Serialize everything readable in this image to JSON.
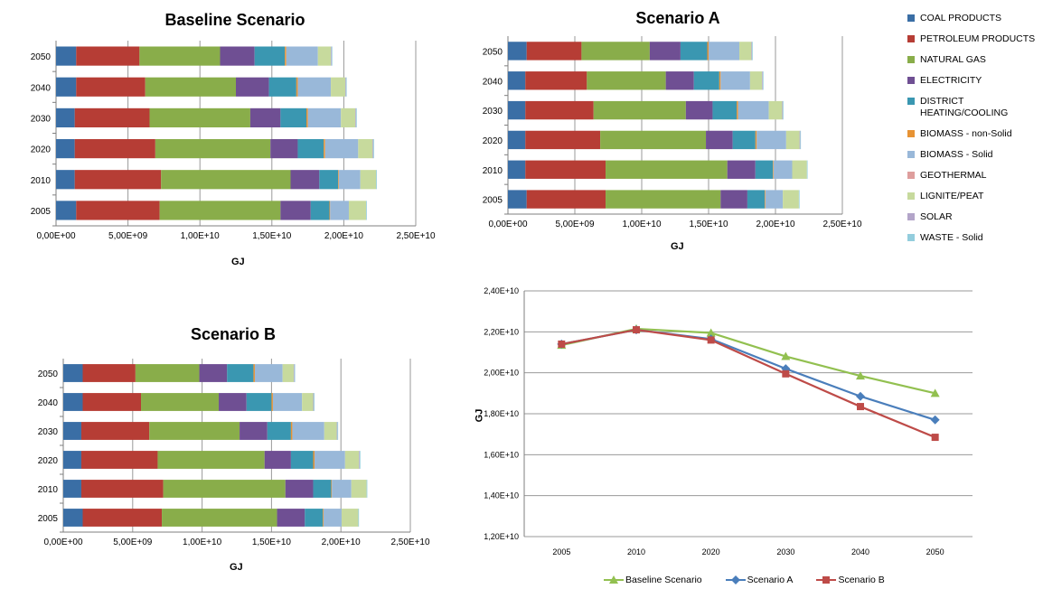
{
  "colors": {
    "COAL PRODUCTS": "#3a6ea5",
    "PETROLEUM PRODUCTS": "#b63d35",
    "NATURAL GAS": "#89ad4a",
    "ELECTRICITY": "#6f4f93",
    "DISTRICT HEATING/COOLING": "#3a97b1",
    "BIOMASS - non-Solid": "#e79334",
    "BIOMASS - Solid": "#99b8d9",
    "GEOTHERMAL": "#de9e9d",
    "LIGNITE/PEAT": "#c7da9d",
    "SOLAR": "#b3a5c9",
    "WASTE - Solid": "#93cddd",
    "Baseline Scenario": "#92c050",
    "Scenario A": "#4a7ebb",
    "Scenario B": "#be4b48"
  },
  "legend": {
    "items": [
      {
        "label": "COAL PRODUCTS",
        "key": "COAL PRODUCTS"
      },
      {
        "label": "PETROLEUM PRODUCTS",
        "key": "PETROLEUM PRODUCTS"
      },
      {
        "label": "NATURAL GAS",
        "key": "NATURAL GAS"
      },
      {
        "label": "ELECTRICITY",
        "key": "ELECTRICITY"
      },
      {
        "label": "DISTRICT HEATING/COOLING",
        "key": "DISTRICT HEATING/COOLING"
      },
      {
        "label": "BIOMASS - non-Solid",
        "key": "BIOMASS - non-Solid"
      },
      {
        "label": "BIOMASS - Solid",
        "key": "BIOMASS - Solid"
      },
      {
        "label": "GEOTHERMAL",
        "key": "GEOTHERMAL"
      },
      {
        "label": "LIGNITE/PEAT",
        "key": "LIGNITE/PEAT"
      },
      {
        "label": "SOLAR",
        "key": "SOLAR"
      },
      {
        "label": "WASTE - Solid",
        "key": "WASTE - Solid"
      }
    ]
  },
  "chart_data": [
    {
      "type": "bar",
      "orientation": "horizontal",
      "stacked": true,
      "title": "Baseline Scenario",
      "xlabel": "GJ",
      "xlim": [
        0,
        25000000000
      ],
      "xticks": [
        "0,00E+00",
        "5,00E+09",
        "1,00E+10",
        "1,50E+10",
        "2,00E+10",
        "2,50E+10"
      ],
      "categories": [
        "2005",
        "2010",
        "2020",
        "2030",
        "2040",
        "2050"
      ],
      "series": [
        {
          "name": "COAL PRODUCTS",
          "values": [
            1400000000.0,
            1300000000.0,
            1300000000.0,
            1300000000.0,
            1400000000.0,
            1400000000.0
          ]
        },
        {
          "name": "PETROLEUM PRODUCTS",
          "values": [
            5800000000.0,
            6000000000.0,
            5600000000.0,
            5200000000.0,
            4800000000.0,
            4400000000.0
          ]
        },
        {
          "name": "NATURAL GAS",
          "values": [
            8400000000.0,
            9000000000.0,
            8000000000.0,
            7000000000.0,
            6300000000.0,
            5600000000.0
          ]
        },
        {
          "name": "ELECTRICITY",
          "values": [
            2100000000.0,
            2000000000.0,
            1900000000.0,
            2100000000.0,
            2300000000.0,
            2400000000.0
          ]
        },
        {
          "name": "DISTRICT HEATING/COOLING",
          "values": [
            1300000000.0,
            1300000000.0,
            1800000000.0,
            1800000000.0,
            1900000000.0,
            2100000000.0
          ]
        },
        {
          "name": "BIOMASS - non-Solid",
          "values": [
            50000000.0,
            50000000.0,
            100000000.0,
            100000000.0,
            100000000.0,
            100000000.0
          ]
        },
        {
          "name": "BIOMASS - Solid",
          "values": [
            1300000000.0,
            1500000000.0,
            2300000000.0,
            2300000000.0,
            2300000000.0,
            2200000000.0
          ]
        },
        {
          "name": "GEOTHERMAL",
          "values": [
            0,
            0,
            0,
            0,
            0,
            0
          ]
        },
        {
          "name": "LIGNITE/PEAT",
          "values": [
            1200000000.0,
            1100000000.0,
            1000000000.0,
            1000000000.0,
            1000000000.0,
            900000000.0
          ]
        },
        {
          "name": "SOLAR",
          "values": [
            0,
            0,
            50000000.0,
            50000000.0,
            50000000.0,
            50000000.0
          ]
        },
        {
          "name": "WASTE - Solid",
          "values": [
            50000000.0,
            50000000.0,
            50000000.0,
            50000000.0,
            50000000.0,
            50000000.0
          ]
        }
      ]
    },
    {
      "type": "bar",
      "orientation": "horizontal",
      "stacked": true,
      "title": "Scenario A",
      "xlabel": "GJ",
      "xlim": [
        0,
        25000000000
      ],
      "xticks": [
        "0,00E+00",
        "5,00E+09",
        "1,00E+10",
        "1,50E+10",
        "2,00E+10",
        "2,50E+10"
      ],
      "categories": [
        "2005",
        "2010",
        "2020",
        "2030",
        "2040",
        "2050"
      ],
      "series": [
        {
          "name": "COAL PRODUCTS",
          "values": [
            1400000000.0,
            1300000000.0,
            1300000000.0,
            1300000000.0,
            1300000000.0,
            1400000000.0
          ]
        },
        {
          "name": "PETROLEUM PRODUCTS",
          "values": [
            5900000000.0,
            6000000000.0,
            5600000000.0,
            5100000000.0,
            4600000000.0,
            4100000000.0
          ]
        },
        {
          "name": "NATURAL GAS",
          "values": [
            8600000000.0,
            9100000000.0,
            7900000000.0,
            6900000000.0,
            5900000000.0,
            5100000000.0
          ]
        },
        {
          "name": "ELECTRICITY",
          "values": [
            2000000000.0,
            2100000000.0,
            2000000000.0,
            2000000000.0,
            2100000000.0,
            2300000000.0
          ]
        },
        {
          "name": "DISTRICT HEATING/COOLING",
          "values": [
            1300000000.0,
            1300000000.0,
            1700000000.0,
            1800000000.0,
            1900000000.0,
            2000000000.0
          ]
        },
        {
          "name": "BIOMASS - non-Solid",
          "values": [
            50000000.0,
            50000000.0,
            100000000.0,
            100000000.0,
            100000000.0,
            100000000.0
          ]
        },
        {
          "name": "BIOMASS - Solid",
          "values": [
            1300000000.0,
            1400000000.0,
            2200000000.0,
            2300000000.0,
            2200000000.0,
            2300000000.0
          ]
        },
        {
          "name": "GEOTHERMAL",
          "values": [
            0,
            0,
            0,
            0,
            0,
            0
          ]
        },
        {
          "name": "LIGNITE/PEAT",
          "values": [
            1200000000.0,
            1100000000.0,
            1000000000.0,
            1000000000.0,
            900000000.0,
            900000000.0
          ]
        },
        {
          "name": "SOLAR",
          "values": [
            0,
            0,
            50000000.0,
            50000000.0,
            50000000.0,
            50000000.0
          ]
        },
        {
          "name": "WASTE - Solid",
          "values": [
            50000000.0,
            50000000.0,
            50000000.0,
            50000000.0,
            50000000.0,
            50000000.0
          ]
        }
      ]
    },
    {
      "type": "bar",
      "orientation": "horizontal",
      "stacked": true,
      "title": "Scenario B",
      "xlabel": "GJ",
      "xlim": [
        0,
        25000000000
      ],
      "xticks": [
        "0,00E+00",
        "5,00E+09",
        "1,00E+10",
        "1,50E+10",
        "2,00E+10",
        "2,50E+10"
      ],
      "categories": [
        "2005",
        "2010",
        "2020",
        "2030",
        "2040",
        "2050"
      ],
      "series": [
        {
          "name": "COAL PRODUCTS",
          "values": [
            1400000000.0,
            1300000000.0,
            1300000000.0,
            1300000000.0,
            1400000000.0,
            1400000000.0
          ]
        },
        {
          "name": "PETROLEUM PRODUCTS",
          "values": [
            5700000000.0,
            5900000000.0,
            5500000000.0,
            4900000000.0,
            4200000000.0,
            3800000000.0
          ]
        },
        {
          "name": "NATURAL GAS",
          "values": [
            8300000000.0,
            8800000000.0,
            7700000000.0,
            6500000000.0,
            5600000000.0,
            4600000000.0
          ]
        },
        {
          "name": "ELECTRICITY",
          "values": [
            2000000000.0,
            2000000000.0,
            1900000000.0,
            2000000000.0,
            2000000000.0,
            2000000000.0
          ]
        },
        {
          "name": "DISTRICT HEATING/COOLING",
          "values": [
            1300000000.0,
            1300000000.0,
            1600000000.0,
            1700000000.0,
            1800000000.0,
            1900000000.0
          ]
        },
        {
          "name": "BIOMASS - non-Solid",
          "values": [
            50000000.0,
            50000000.0,
            100000000.0,
            100000000.0,
            100000000.0,
            100000000.0
          ]
        },
        {
          "name": "BIOMASS - Solid",
          "values": [
            1300000000.0,
            1400000000.0,
            2200000000.0,
            2300000000.0,
            2100000000.0,
            2000000000.0
          ]
        },
        {
          "name": "GEOTHERMAL",
          "values": [
            0,
            0,
            0,
            0,
            0,
            0
          ]
        },
        {
          "name": "LIGNITE/PEAT",
          "values": [
            1200000000.0,
            1100000000.0,
            1000000000.0,
            900000000.0,
            800000000.0,
            800000000.0
          ]
        },
        {
          "name": "SOLAR",
          "values": [
            0,
            0,
            50000000.0,
            50000000.0,
            50000000.0,
            50000000.0
          ]
        },
        {
          "name": "WASTE - Solid",
          "values": [
            50000000.0,
            50000000.0,
            50000000.0,
            50000000.0,
            50000000.0,
            50000000.0
          ]
        }
      ]
    },
    {
      "type": "line",
      "title": "",
      "xlabel": "",
      "ylabel": "GJ",
      "ylim": [
        12000000000,
        24000000000
      ],
      "yticks": [
        {
          "value": 12000000000,
          "label": "1,20E+10"
        },
        {
          "value": 14000000000,
          "label": "1,40E+10"
        },
        {
          "value": 16000000000,
          "label": "1,60E+10"
        },
        {
          "value": 18000000000,
          "label": "1,80E+10"
        },
        {
          "value": 20000000000,
          "label": "2,00E+10"
        },
        {
          "value": 22000000000,
          "label": "2,20E+10"
        },
        {
          "value": 24000000000,
          "label": "2,40E+10"
        }
      ],
      "categories": [
        "2005",
        "2010",
        "2020",
        "2030",
        "2040",
        "2050"
      ],
      "series": [
        {
          "name": "Baseline Scenario",
          "marker": "triangle",
          "values": [
            21350000000.0,
            22150000000.0,
            21950000000.0,
            20800000000.0,
            19850000000.0,
            19000000000.0
          ]
        },
        {
          "name": "Scenario A",
          "marker": "diamond",
          "values": [
            21400000000.0,
            22100000000.0,
            21650000000.0,
            20200000000.0,
            18850000000.0,
            17700000000.0
          ]
        },
        {
          "name": "Scenario B",
          "marker": "square",
          "values": [
            21400000000.0,
            22100000000.0,
            21600000000.0,
            19950000000.0,
            18350000000.0,
            16850000000.0
          ]
        }
      ],
      "legend_position": "bottom"
    }
  ]
}
